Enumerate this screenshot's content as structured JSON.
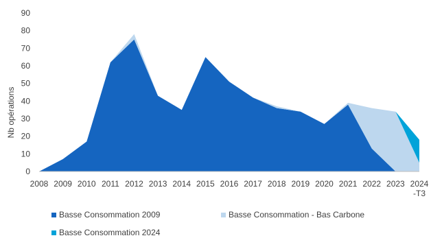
{
  "chart_data": {
    "type": "area",
    "ylabel": "Nb opérations",
    "ylim": [
      0,
      90
    ],
    "yticks": [
      0,
      10,
      20,
      30,
      40,
      50,
      60,
      70,
      80,
      90
    ],
    "categories": [
      "2008",
      "2009",
      "2010",
      "2011",
      "2012",
      "2013",
      "2014",
      "2015",
      "2016",
      "2017",
      "2018",
      "2019",
      "2020",
      "2021",
      "2022",
      "2023",
      "2024\n-T3"
    ],
    "stacked": true,
    "grid": false,
    "legend_position": "bottom",
    "series": [
      {
        "name": "Basse Consommation 2009",
        "color": "#1565C0",
        "values": [
          0,
          7,
          17,
          62,
          75,
          43,
          35,
          65,
          51,
          42,
          36,
          34,
          27,
          38,
          13,
          0,
          0
        ]
      },
      {
        "name": "Basse Consommation - Bas Carbone",
        "color": "#BDD7EE",
        "values": [
          0,
          0,
          0,
          0,
          3,
          0,
          0,
          0,
          0,
          0,
          1,
          0,
          0,
          1,
          23,
          34,
          5
        ]
      },
      {
        "name": "Basse Consommation 2024",
        "color": "#00A3D9",
        "values": [
          0,
          0,
          0,
          0,
          0,
          0,
          0,
          0,
          0,
          0,
          0,
          0,
          0,
          0,
          0,
          0,
          13
        ]
      }
    ]
  }
}
